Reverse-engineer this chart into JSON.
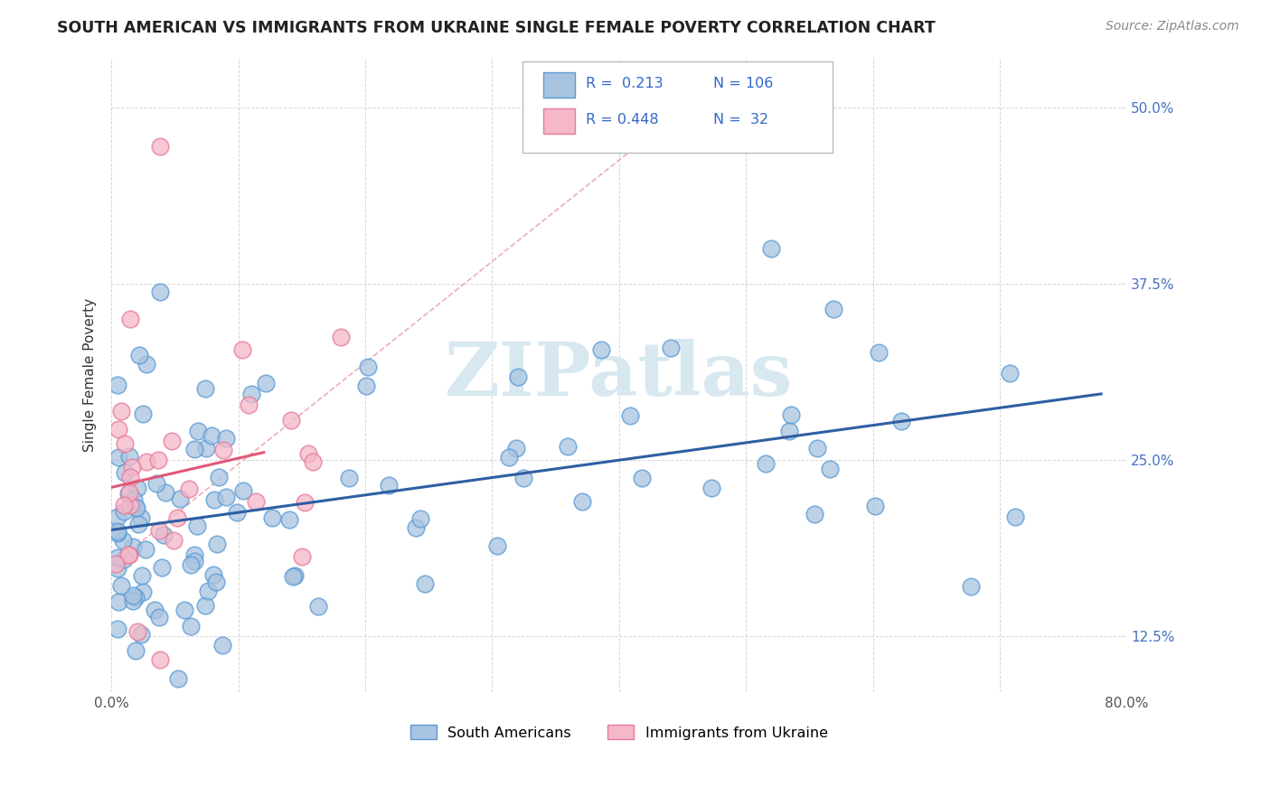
{
  "title": "SOUTH AMERICAN VS IMMIGRANTS FROM UKRAINE SINGLE FEMALE POVERTY CORRELATION CHART",
  "source": "Source: ZipAtlas.com",
  "ylabel": "Single Female Poverty",
  "xlim": [
    0.0,
    0.8
  ],
  "ylim": [
    0.085,
    0.535
  ],
  "ytick_positions": [
    0.125,
    0.25,
    0.375,
    0.5
  ],
  "ytick_labels": [
    "12.5%",
    "25.0%",
    "37.5%",
    "50.0%"
  ],
  "blue_color": "#A8C4E0",
  "blue_edge_color": "#5B9BD5",
  "pink_color": "#F4B8C8",
  "pink_edge_color": "#E87A9A",
  "blue_line_color": "#2E5FA3",
  "pink_line_color": "#E05878",
  "dash_line_color": "#E8A0B0",
  "legend_text_color": "#3366CC",
  "right_axis_color": "#4472C4",
  "watermark_color": "#D8E8F0",
  "sa_seed": 123,
  "uk_seed": 456
}
